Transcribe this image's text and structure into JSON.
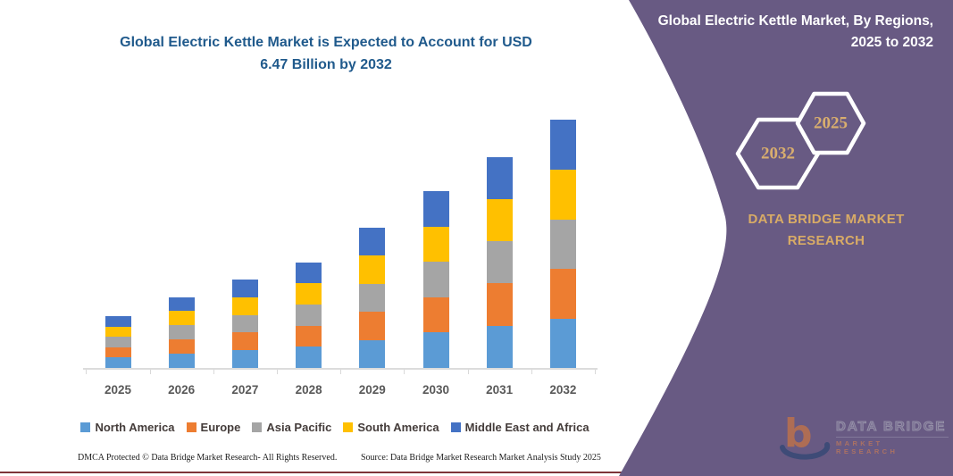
{
  "main_title": {
    "line1": "Global Electric Kettle Market is Expected to Account for USD",
    "line2": "6.47 Billion by 2032"
  },
  "chart_data": {
    "type": "bar",
    "stacked": true,
    "title": "Global Electric Kettle Market is Expected to Account for USD 6.47 Billion by 2032",
    "unit": "USD Billion",
    "categories": [
      "2025",
      "2026",
      "2027",
      "2028",
      "2029",
      "2030",
      "2031",
      "2032"
    ],
    "totals": [
      1.35,
      1.85,
      2.3,
      2.75,
      3.65,
      4.6,
      5.5,
      6.47
    ],
    "series": [
      {
        "name": "North America",
        "color": "#5b9bd5",
        "values": [
          0.27,
          0.37,
          0.46,
          0.55,
          0.73,
          0.92,
          1.1,
          1.29
        ]
      },
      {
        "name": "Europe",
        "color": "#ed7d31",
        "values": [
          0.27,
          0.37,
          0.46,
          0.55,
          0.73,
          0.92,
          1.1,
          1.29
        ]
      },
      {
        "name": "Asia Pacific",
        "color": "#a5a5a5",
        "values": [
          0.27,
          0.37,
          0.46,
          0.55,
          0.73,
          0.92,
          1.1,
          1.29
        ]
      },
      {
        "name": "South America",
        "color": "#ffc000",
        "values": [
          0.27,
          0.37,
          0.46,
          0.55,
          0.73,
          0.92,
          1.1,
          1.29
        ]
      },
      {
        "name": "Middle East and Africa",
        "color": "#4472c4",
        "values": [
          0.27,
          0.37,
          0.46,
          0.55,
          0.73,
          0.92,
          1.1,
          1.3
        ]
      }
    ],
    "ylim": [
      0,
      7
    ],
    "grid": false,
    "legend_position": "bottom",
    "x_axis_labels_visible": true,
    "y_axis_labels_visible": false
  },
  "sidebar": {
    "title": "Global Electric Kettle Market, By Regions, 2025 to 2032",
    "hexagon_back_label": "2032",
    "hexagon_front_label": "2025",
    "brand": "DATA BRIDGE MARKET RESEARCH",
    "logo": {
      "letter": "b",
      "line1": "DATA BRIDGE",
      "line2": "MARKET RESEARCH"
    }
  },
  "footer": {
    "left": "DMCA Protected © Data Bridge Market Research-  All Rights Reserved.",
    "right": "Source: Data Bridge Market Research  Market Analysis Study 2025"
  },
  "colors": {
    "panel_purple": "#685a83",
    "title_blue": "#205a8c",
    "gold_text": "#d8ab66",
    "axis_gray": "#d9d9d9",
    "x_label_gray": "#595959",
    "legend_text": "#443c3a",
    "bottom_rule_maroon": "#7d3337"
  }
}
